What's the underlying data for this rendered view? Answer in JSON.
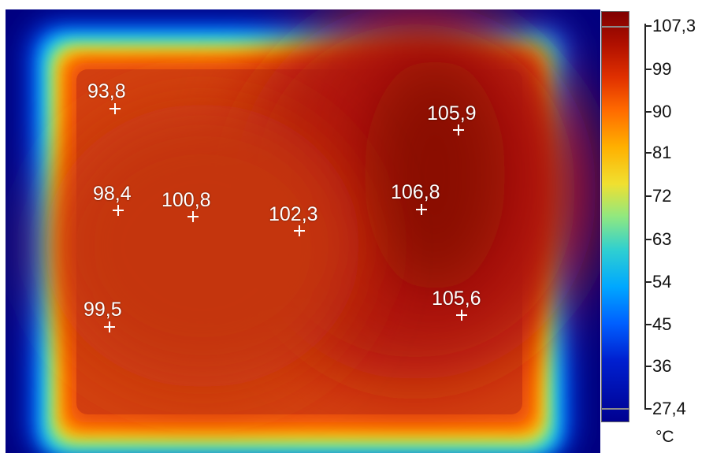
{
  "thermal_image": {
    "readings": [
      "93,8",
      "105,9",
      "98,4",
      "100,8",
      "102,3",
      "106,8",
      "99,5",
      "105,6"
    ]
  },
  "scale": {
    "max_label": "107,3",
    "tick_labels": [
      "99",
      "90",
      "81",
      "72",
      "63",
      "54",
      "45",
      "36"
    ],
    "min_label": "27,4",
    "unit": "°C"
  },
  "colors": {
    "cold": "#000080",
    "cool": "#00a8ff",
    "mid": "#90e880",
    "warm": "#ff6a00",
    "hot": "#800000",
    "marker": "#ffffff"
  }
}
